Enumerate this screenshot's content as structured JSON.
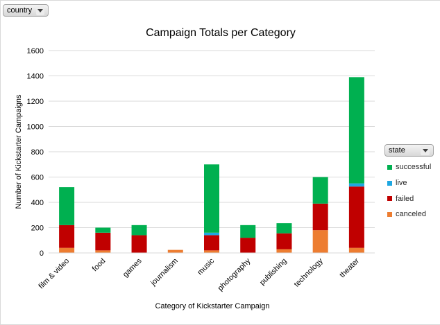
{
  "filters": {
    "country_label": "country",
    "state_label": "state"
  },
  "chart_data": {
    "type": "bar",
    "stacked": true,
    "title": "Campaign Totals per Category",
    "xlabel": "Category of Kickstarter Campaign",
    "ylabel": "Number of Kickstarter Campaigns",
    "ylim": [
      0,
      1600
    ],
    "yticks": [
      0,
      200,
      400,
      600,
      800,
      1000,
      1200,
      1400,
      1600
    ],
    "grid": true,
    "legend_position": "right",
    "categories": [
      "film & video",
      "food",
      "games",
      "journalism",
      "music",
      "photography",
      "publishing",
      "technology",
      "theater"
    ],
    "series": [
      {
        "name": "canceled",
        "color": "#ed7d31",
        "values": [
          40,
          20,
          0,
          24,
          20,
          0,
          30,
          180,
          40
        ]
      },
      {
        "name": "failed",
        "color": "#c00000",
        "values": [
          180,
          140,
          140,
          0,
          120,
          120,
          125,
          210,
          485
        ]
      },
      {
        "name": "live",
        "color": "#1ea7e1",
        "values": [
          0,
          0,
          0,
          0,
          20,
          0,
          0,
          0,
          25
        ]
      },
      {
        "name": "successful",
        "color": "#00b050",
        "values": [
          300,
          40,
          80,
          0,
          540,
          100,
          80,
          210,
          840
        ]
      }
    ],
    "legend_order": [
      "successful",
      "live",
      "failed",
      "canceled"
    ]
  }
}
